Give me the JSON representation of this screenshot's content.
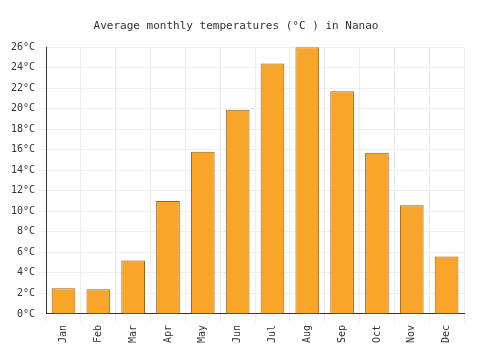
{
  "chart_data": {
    "type": "bar",
    "title": "Average monthly temperatures (°C ) in Nanao",
    "categories": [
      "Jan",
      "Feb",
      "Mar",
      "Apr",
      "May",
      "Jun",
      "Jul",
      "Aug",
      "Sep",
      "Oct",
      "Nov",
      "Dec"
    ],
    "values": [
      2.5,
      2.4,
      5.2,
      11.0,
      15.8,
      19.9,
      24.4,
      26.0,
      21.7,
      15.7,
      10.6,
      5.6
    ],
    "color": "#f9a52b",
    "ylim": [
      0,
      26
    ],
    "yticks": [
      {
        "value": 0,
        "label": "0°C"
      },
      {
        "value": 2,
        "label": "2°C"
      },
      {
        "value": 4,
        "label": "4°C"
      },
      {
        "value": 6,
        "label": "6°C"
      },
      {
        "value": 8,
        "label": "8°C"
      },
      {
        "value": 10,
        "label": "10°C"
      },
      {
        "value": 12,
        "label": "12°C"
      },
      {
        "value": 14,
        "label": "14°C"
      },
      {
        "value": 16,
        "label": "16°C"
      },
      {
        "value": 18,
        "label": "18°C"
      },
      {
        "value": 20,
        "label": "20°C"
      },
      {
        "value": 22,
        "label": "22°C"
      },
      {
        "value": 24,
        "label": "24°C"
      },
      {
        "value": 26,
        "label": "26°C"
      }
    ],
    "grid": true
  }
}
